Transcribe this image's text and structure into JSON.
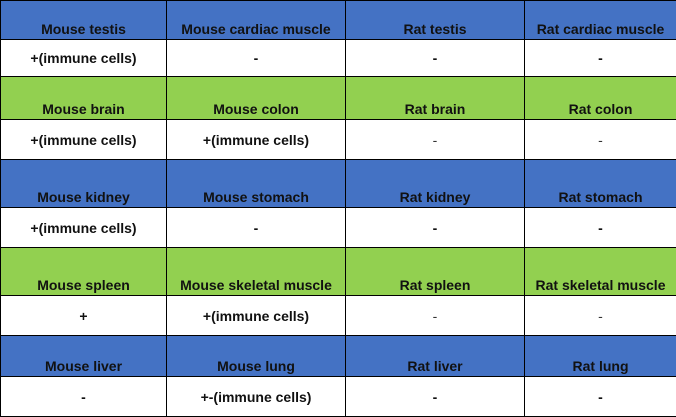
{
  "colors": {
    "header_blue": "#4472c4",
    "header_green": "#92d050",
    "value_row_bg": "#ffffff",
    "border": "#000000"
  },
  "rows": [
    {
      "style": "blue",
      "headers": [
        "Mouse testis",
        "Mouse cardiac muscle",
        "Rat testis",
        "Rat cardiac muscle"
      ],
      "values": [
        "+(immune cells)",
        "-",
        "-",
        "-"
      ]
    },
    {
      "style": "green",
      "headers": [
        "Mouse brain",
        "Mouse colon",
        "Rat brain",
        "Rat colon"
      ],
      "values": [
        "+(immune cells)",
        "+(immune cells)",
        "-",
        "-"
      ]
    },
    {
      "style": "blue",
      "headers": [
        "Mouse kidney",
        "Mouse stomach",
        "Rat kidney",
        "Rat stomach"
      ],
      "values": [
        "+(immune cells)",
        "-",
        "-",
        "-"
      ]
    },
    {
      "style": "green",
      "headers": [
        "Mouse spleen",
        "Mouse skeletal muscle",
        "Rat spleen",
        "Rat skeletal muscle"
      ],
      "values": [
        "+",
        "+(immune cells)",
        "-",
        "-"
      ]
    },
    {
      "style": "blue",
      "headers": [
        "Mouse liver",
        "Mouse lung",
        "Rat liver",
        "Rat lung"
      ],
      "values": [
        "-",
        "+-(immune cells)",
        "-",
        "-"
      ]
    }
  ]
}
